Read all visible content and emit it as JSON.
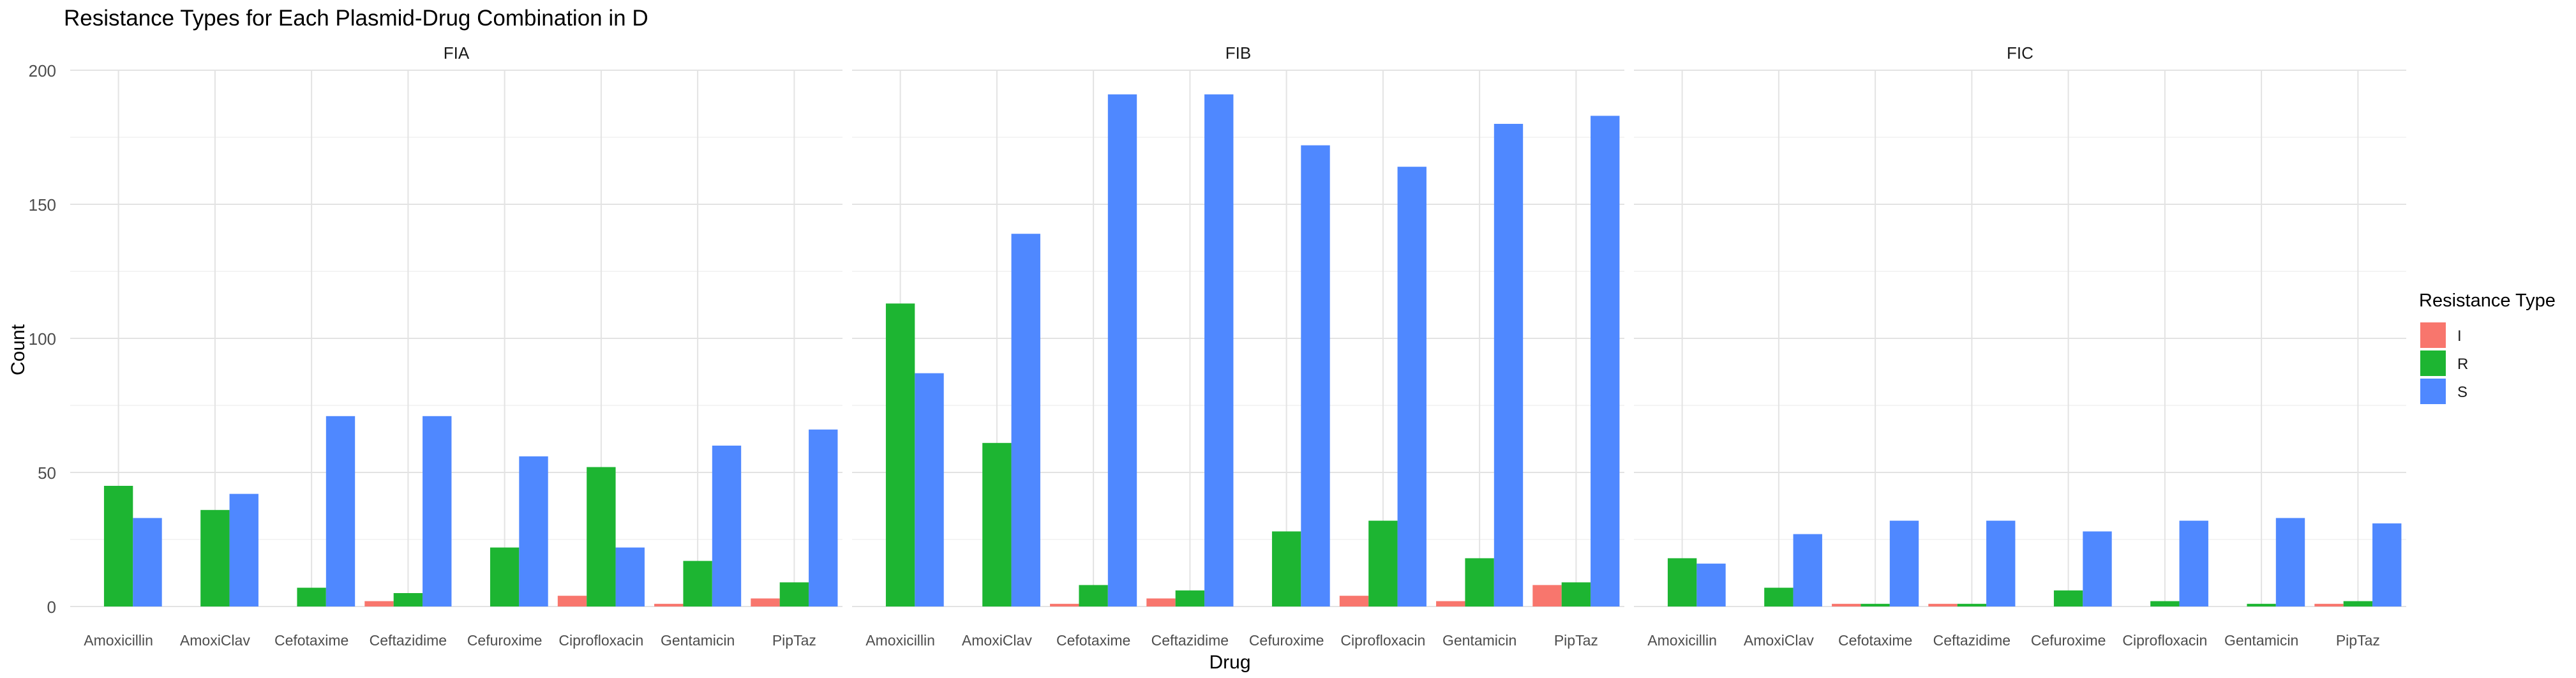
{
  "chart_data": {
    "type": "bar",
    "title": "Resistance Types for Each Plasmid-Drug Combination in D",
    "xlabel": "Drug",
    "ylabel": "Count",
    "ylim": [
      0,
      200
    ],
    "yticks": [
      0,
      50,
      100,
      150,
      200
    ],
    "grid": true,
    "legend": {
      "title": "Resistance Type",
      "position": "right",
      "entries": [
        {
          "name": "I",
          "color": "#F8766D"
        },
        {
          "name": "R",
          "color": "#1DB532"
        },
        {
          "name": "S",
          "color": "#4F88FF"
        }
      ]
    },
    "categories": [
      "Amoxicillin",
      "AmoxiClav",
      "Cefotaxime",
      "Ceftazidime",
      "Cefuroxime",
      "Ciprofloxacin",
      "Gentamicin",
      "PipTaz"
    ],
    "panels": [
      {
        "name": "FIA",
        "series": [
          {
            "name": "I",
            "values": [
              0,
              0,
              0,
              2,
              0,
              4,
              1,
              3
            ]
          },
          {
            "name": "R",
            "values": [
              45,
              36,
              7,
              5,
              22,
              52,
              17,
              9
            ]
          },
          {
            "name": "S",
            "values": [
              33,
              42,
              71,
              71,
              56,
              22,
              60,
              66
            ]
          }
        ]
      },
      {
        "name": "FIB",
        "series": [
          {
            "name": "I",
            "values": [
              0,
              0,
              1,
              3,
              0,
              4,
              2,
              8
            ]
          },
          {
            "name": "R",
            "values": [
              113,
              61,
              8,
              6,
              28,
              32,
              18,
              9
            ]
          },
          {
            "name": "S",
            "values": [
              87,
              139,
              191,
              191,
              172,
              164,
              180,
              183
            ]
          }
        ]
      },
      {
        "name": "FIC",
        "series": [
          {
            "name": "I",
            "values": [
              0,
              0,
              1,
              1,
              0,
              0,
              0,
              1
            ]
          },
          {
            "name": "R",
            "values": [
              18,
              7,
              1,
              1,
              6,
              2,
              1,
              2
            ]
          },
          {
            "name": "S",
            "values": [
              16,
              27,
              32,
              32,
              28,
              32,
              33,
              31
            ]
          }
        ]
      }
    ]
  }
}
